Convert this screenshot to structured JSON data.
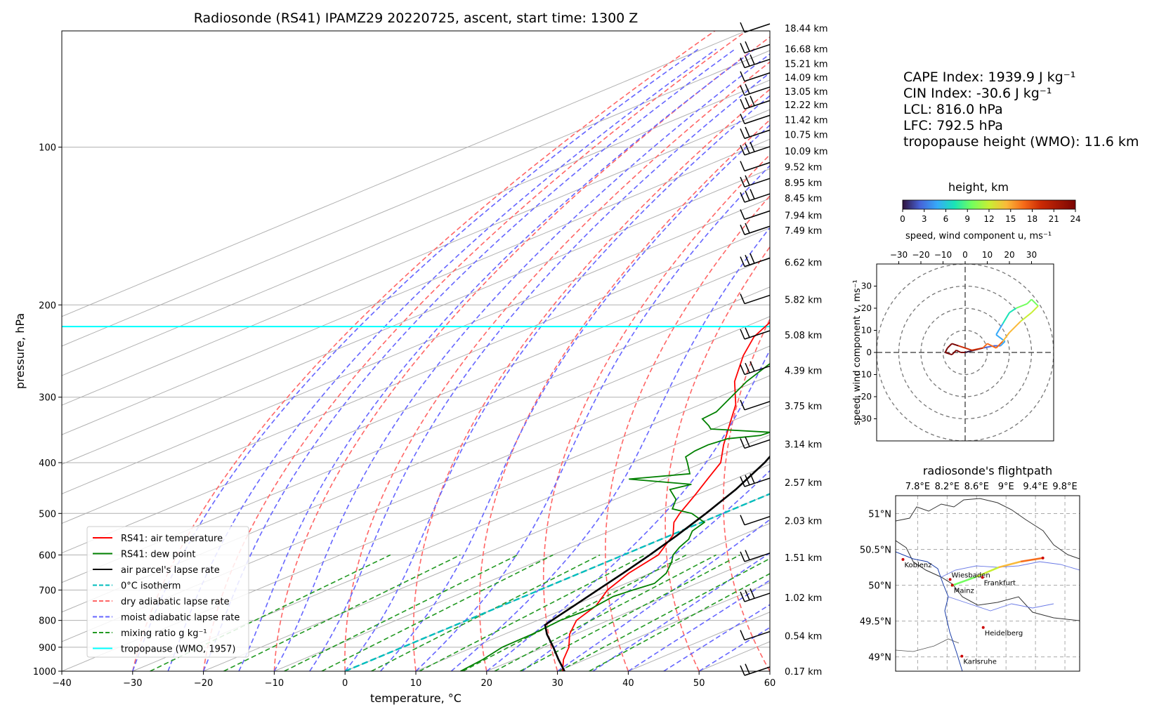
{
  "chart_data": [
    {
      "type": "line",
      "title": "Radiosonde (RS41) IPAMZ29 20220725, ascent, start time: 1300 Z",
      "xlabel": "temperature, °C",
      "ylabel": "pressure, hPa",
      "xlim": [
        -40,
        60
      ],
      "ylim": [
        1000,
        60
      ],
      "y_scale": "log",
      "skew_t": true,
      "x_ticks": [
        -40,
        -30,
        -20,
        -10,
        0,
        10,
        20,
        30,
        40,
        50,
        60
      ],
      "y_ticks": [
        1000,
        900,
        800,
        700,
        600,
        500,
        400,
        300,
        200,
        100
      ],
      "grid": true,
      "height_labels": [
        {
          "p": 65,
          "label": "18.44 km"
        },
        {
          "p": 100,
          "label": "16.68 km"
        },
        {
          "p": 125,
          "label": "15.21 km"
        },
        {
          "p": 148,
          "label": "14.09 km"
        },
        {
          "p": 172,
          "label": "13.05 km"
        },
        {
          "p": 195,
          "label": "12.22 km"
        },
        {
          "p": 220,
          "label": "11.42 km"
        },
        {
          "p": 245,
          "label": "10.75 km"
        },
        {
          "p": 273,
          "label": "10.09 km"
        },
        {
          "p": 300,
          "label": "9.52 km"
        },
        {
          "p": 327,
          "label": "8.95 km"
        },
        {
          "p": 353,
          "label": "8.45 km"
        },
        {
          "p": 382,
          "label": "7.94 km"
        },
        {
          "p": 408,
          "label": "7.49 km"
        },
        {
          "p": 462,
          "label": "6.62 km"
        },
        {
          "p": 525,
          "label": "5.82 km"
        },
        {
          "p": 585,
          "label": "5.08 km"
        },
        {
          "p": 645,
          "label": "4.39 km"
        },
        {
          "p": 705,
          "label": "3.75 km"
        },
        {
          "p": 770,
          "label": "3.14 km"
        },
        {
          "p": 835,
          "label": "2.57 km"
        },
        {
          "p": 900,
          "label": "2.03 km"
        },
        {
          "p": 962,
          "label": "1.51 km"
        },
        {
          "p": 1030,
          "label": "1.02 km"
        },
        {
          "p": 1095,
          "label": "0.54 km"
        },
        {
          "p": 1155,
          "label": "0.17 km"
        }
      ],
      "series": [
        {
          "name": "RS41: air temperature",
          "color": "#ff0000",
          "p": [
            1000,
            950,
            900,
            850,
            800,
            750,
            700,
            650,
            600,
            550,
            520,
            500,
            460,
            430,
            400,
            370,
            340,
            310,
            280,
            250,
            230,
            215,
            200,
            185,
            170,
            155,
            140,
            125,
            115,
            105,
            95,
            85,
            75,
            65
          ],
          "t": [
            30.7,
            26.9,
            23.5,
            19.2,
            15.5,
            13.3,
            9.6,
            6.9,
            4.9,
            0.3,
            -3.9,
            -6.1,
            -10.3,
            -13.8,
            -17.5,
            -23.1,
            -28.8,
            -35.0,
            -43.0,
            -50.5,
            -55.4,
            -58.2,
            -58.0,
            -56.4,
            -58.8,
            -61.2,
            -62.4,
            -64.1,
            -67.9,
            -70.2,
            -72.4,
            -75.8,
            -74.7,
            -77.1
          ]
        },
        {
          "name": "RS41: dew point",
          "color": "#008000",
          "p": [
            1000,
            950,
            900,
            850,
            800,
            760,
            720,
            700,
            680,
            650,
            620,
            600,
            580,
            560,
            540,
            520,
            500,
            490,
            470,
            450,
            440,
            430,
            420,
            400,
            390,
            380,
            370,
            360,
            355,
            350,
            345,
            340,
            330,
            320,
            300,
            280,
            260,
            240,
            230,
            220,
            210,
            200,
            190,
            180,
            170,
            160,
            150,
            140,
            130,
            120,
            110,
            100,
            90,
            80,
            70,
            65
          ],
          "t": [
            16.3,
            15.5,
            14.1,
            13.9,
            13.2,
            13.6,
            12.6,
            13.2,
            14.0,
            12.2,
            9.3,
            7.0,
            5.3,
            3.9,
            1.6,
            0.4,
            -4.4,
            -8.7,
            -11.4,
            -15.6,
            -14.3,
            -24.9,
            -18.1,
            -22.2,
            -24.4,
            -25.1,
            -25.3,
            -24.6,
            -21.1,
            -20.8,
            -30.3,
            -31.7,
            -34.9,
            -35.3,
            -38.2,
            -41.3,
            -43.9,
            -46.4,
            -48.2,
            -50.5,
            -51.6,
            -52.7,
            -54.7,
            -56.7,
            -60.3,
            -62.1,
            -63.6,
            -66.3,
            -68.8,
            -71.0,
            -72.5,
            -76.8,
            -79.6,
            -82.4,
            -84.3,
            -85.5
          ]
        },
        {
          "name": "air parcel's lapse rate",
          "color": "#000000",
          "p": [
            1000,
            950,
            900,
            850,
            816,
            800,
            750,
            700,
            650,
            600,
            550,
            500,
            450,
            400,
            350,
            300,
            250,
            220,
            200,
            150,
            100,
            80,
            65
          ],
          "t": [
            31.0,
            26.2,
            21.3,
            16.0,
            12.6,
            12.0,
            10.2,
            8.2,
            6.1,
            3.7,
            0.9,
            -2.4,
            -6.3,
            -11.3,
            -17.8,
            -26.4,
            -38.3,
            -46.9,
            -54.1,
            -77.3,
            -110.3,
            -130.2,
            -148.2
          ]
        }
      ],
      "isotherm_0C": {
        "name": "0°C isotherm",
        "color": "#00bcbc"
      },
      "tropopause": {
        "name": "tropopause (WMO, 1957)",
        "p": 220,
        "color": "#00ffff"
      },
      "legend": {
        "placement": "lower-left",
        "entries": [
          {
            "label": "RS41: air temperature",
            "color": "#ff0000",
            "style": "solid"
          },
          {
            "label": "RS41: dew point",
            "color": "#008000",
            "style": "solid"
          },
          {
            "label": "air parcel's lapse rate",
            "color": "#000000",
            "style": "solid"
          },
          {
            "label": "0°C isotherm",
            "color": "#00bcbc",
            "style": "dashed"
          },
          {
            "label": "dry adiabatic lapse rate",
            "color": "#ff6666",
            "style": "dashed"
          },
          {
            "label": "moist adiabatic lapse rate",
            "color": "#6666ff",
            "style": "dashed"
          },
          {
            "label": "mixing ratio g kg⁻¹",
            "color": "#229922",
            "style": "dashed"
          },
          {
            "label": "tropopause (WMO, 1957)",
            "color": "#00ffff",
            "style": "solid"
          }
        ]
      },
      "indices": [
        "CAPE Index: 1939.9 J kg⁻¹",
        "CIN Index: -30.6 J kg⁻¹",
        "LCL: 816.0 hPa",
        "LFC: 792.5 hPa",
        "tropopause height (WMO): 11.6 km"
      ]
    },
    {
      "type": "line",
      "title": "speed, wind component u, ms⁻¹",
      "xlabel": "speed, wind component u, ms⁻¹",
      "ylabel": "speed, wind component v, ms⁻¹",
      "xlim": [
        -40,
        40
      ],
      "ylim": [
        -40,
        40
      ],
      "x_ticks": [
        -30,
        -20,
        -10,
        0,
        10,
        20,
        30
      ],
      "y_ticks": [
        30,
        20,
        10,
        0,
        -10,
        -20,
        -30
      ],
      "colorbar": {
        "label": "height, km",
        "range": [
          0,
          24
        ],
        "ticks": [
          0,
          3,
          6,
          9,
          12,
          15,
          18,
          21,
          24
        ]
      },
      "hodograph": {
        "u": [
          0,
          4,
          8,
          13,
          16,
          18,
          14,
          17,
          20,
          23,
          28,
          30,
          33,
          30,
          25,
          20,
          17,
          14,
          10,
          8,
          3,
          0,
          -3,
          -6,
          -8,
          -9,
          -6,
          -4,
          -2,
          0
        ],
        "v": [
          0,
          1,
          2,
          3,
          3,
          5,
          8,
          13,
          18,
          20,
          22,
          24,
          21,
          18,
          14,
          9,
          5,
          2,
          4,
          2,
          1,
          2,
          3,
          4,
          2,
          0,
          -1,
          1,
          0,
          0
        ],
        "height_km": [
          0,
          1,
          2,
          3,
          4,
          5,
          6,
          7,
          8,
          9,
          10,
          11,
          12,
          13,
          14,
          15,
          16,
          17,
          18,
          19,
          20,
          21,
          21.5,
          22,
          22.5,
          23,
          23.3,
          23.6,
          23.8,
          24
        ]
      }
    },
    {
      "type": "line",
      "title": "radiosonde's flightpath",
      "x_ticks": [
        "7.8°E",
        "8.2°E",
        "8.6°E",
        "9°E",
        "9.4°E",
        "9.8°E"
      ],
      "y_ticks": [
        "51°N",
        "50.5°N",
        "50°N",
        "49.5°N",
        "49°N"
      ],
      "cities": [
        {
          "name": "Koblenz",
          "lon": 7.6,
          "lat": 50.36
        },
        {
          "name": "Wiesbaden",
          "lon": 8.24,
          "lat": 50.08
        },
        {
          "name": "Frankfurt",
          "lon": 8.68,
          "lat": 50.11
        },
        {
          "name": "Mainz",
          "lon": 8.27,
          "lat": 50.0
        },
        {
          "name": "Heidelberg",
          "lon": 8.69,
          "lat": 49.41
        },
        {
          "name": "Karlsruhe",
          "lon": 8.4,
          "lat": 49.01
        }
      ],
      "track": {
        "lon": [
          8.25,
          8.6,
          8.9,
          9.2,
          9.5
        ],
        "lat": [
          49.99,
          50.12,
          50.25,
          50.33,
          50.38
        ]
      }
    }
  ]
}
